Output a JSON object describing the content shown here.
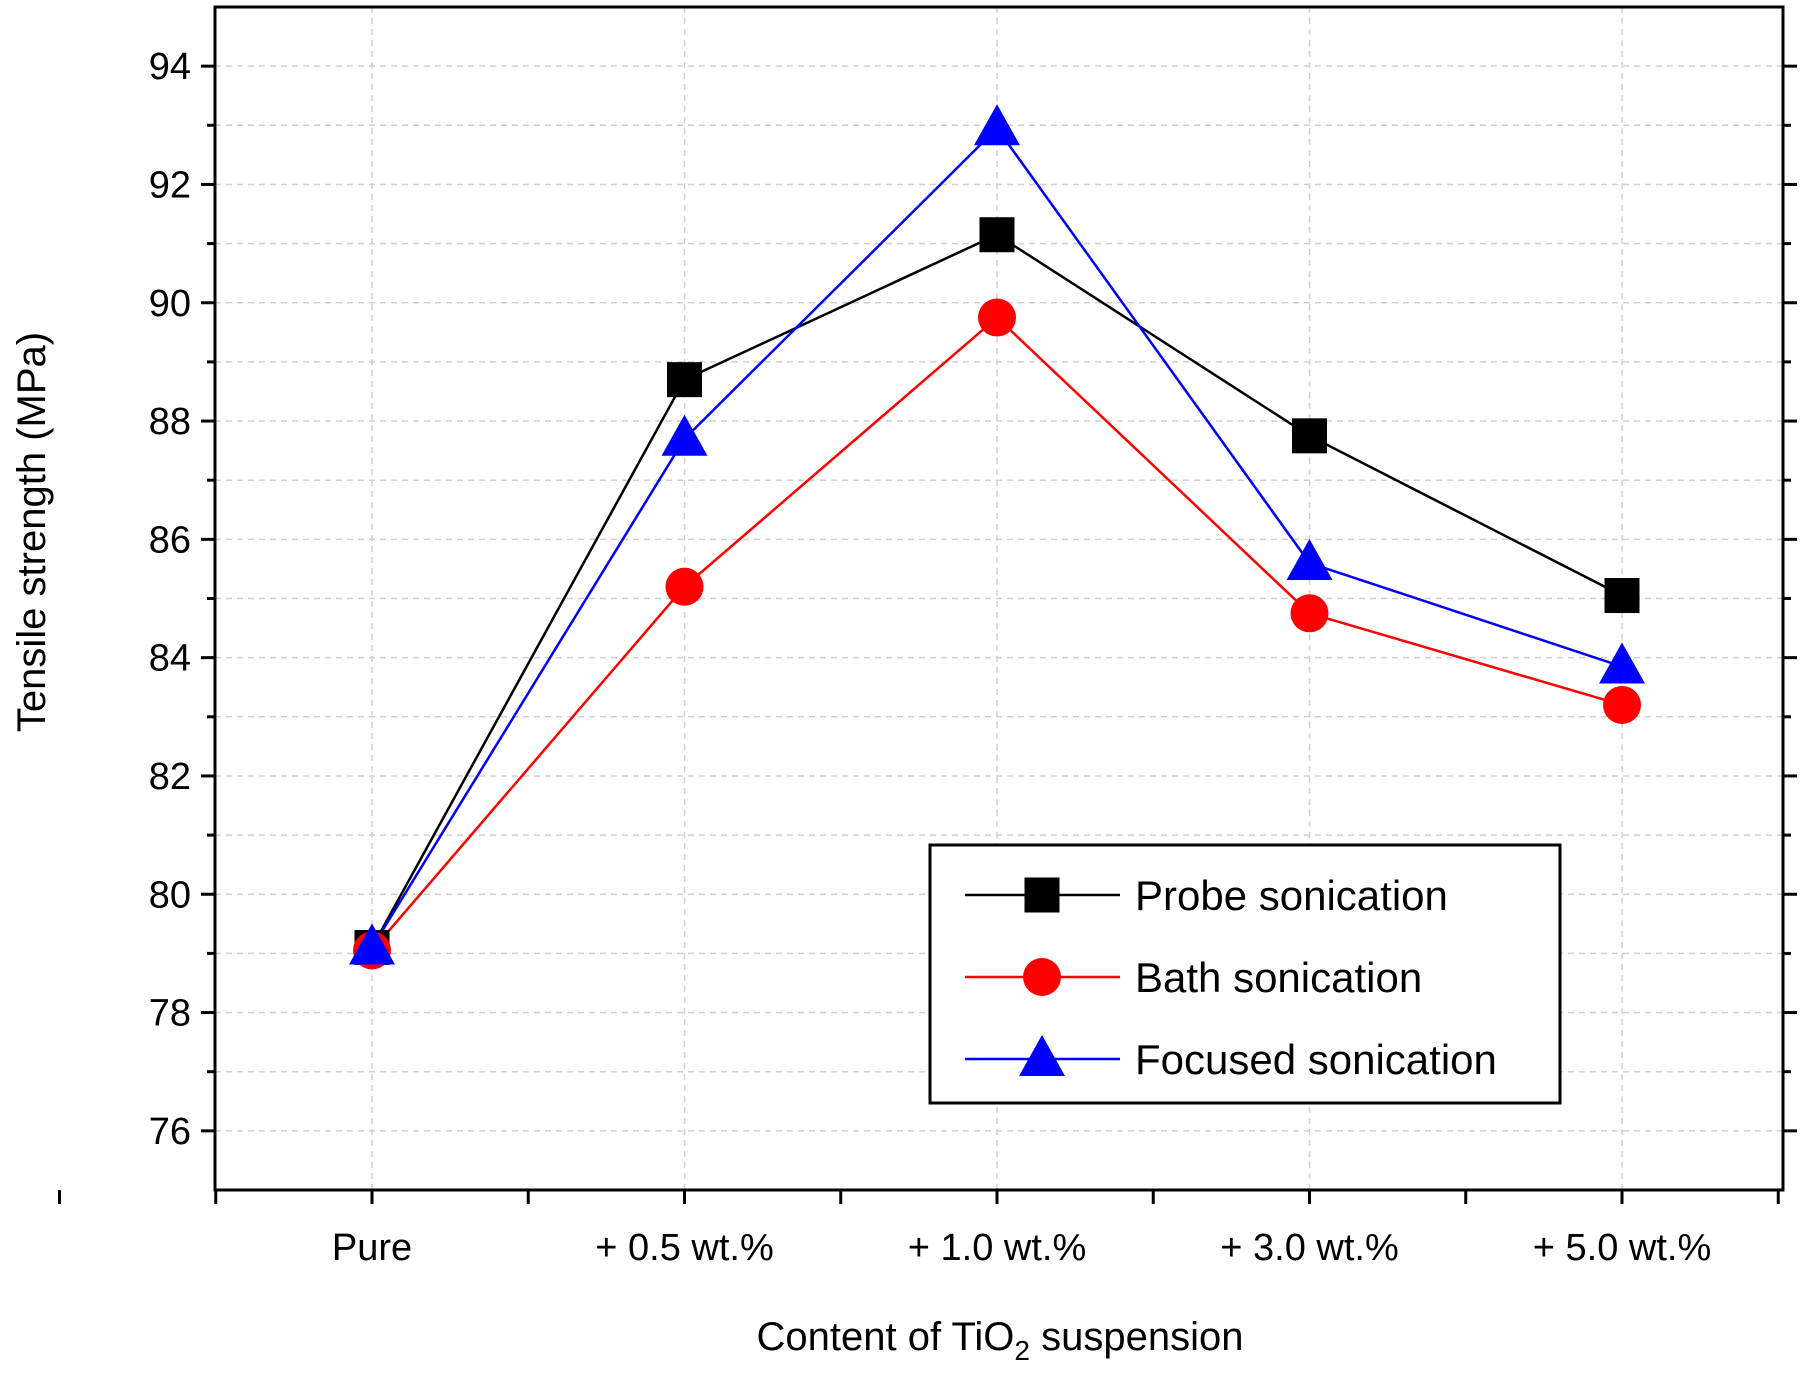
{
  "chart_data": {
    "type": "line",
    "title": "",
    "xlabel_prefix": "Content of TiO",
    "xlabel_subscript": "2",
    "xlabel_suffix": " suspension",
    "ylabel": "Tensile strength (MPa)",
    "categories": [
      "Pure",
      "+ 0.5 wt.%",
      "+ 1.0 wt.%",
      "+ 3.0 wt.%",
      "+ 5.0 wt.%"
    ],
    "ylim": [
      75,
      95
    ],
    "yticks": [
      76,
      78,
      80,
      82,
      84,
      86,
      88,
      90,
      92,
      94
    ],
    "grid": true,
    "legend_position": "bottom-right",
    "series": [
      {
        "name": "Probe sonication",
        "color": "#000000",
        "marker": "square",
        "values": [
          79.1,
          88.7,
          91.15,
          87.75,
          85.05
        ]
      },
      {
        "name": "Bath sonication",
        "color": "#ff0000",
        "marker": "circle",
        "values": [
          79.05,
          85.2,
          89.75,
          84.75,
          83.2
        ]
      },
      {
        "name": "Focused sonication",
        "color": "#0000ff",
        "marker": "triangle",
        "values": [
          79.1,
          87.7,
          92.95,
          85.6,
          83.85
        ]
      }
    ]
  }
}
